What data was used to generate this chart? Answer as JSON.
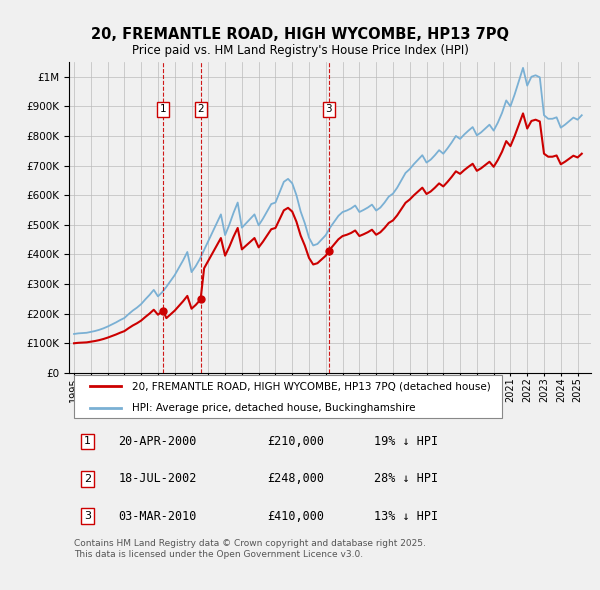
{
  "title": "20, FREMANTLE ROAD, HIGH WYCOMBE, HP13 7PQ",
  "subtitle": "Price paid vs. HM Land Registry's House Price Index (HPI)",
  "ytick_values": [
    0,
    100000,
    200000,
    300000,
    400000,
    500000,
    600000,
    700000,
    800000,
    900000,
    1000000
  ],
  "ylim": [
    0,
    1050000
  ],
  "xlim_start": 1994.7,
  "xlim_end": 2025.8,
  "background_color": "#f0f0f0",
  "plot_bg_color": "#f0f0f0",
  "grid_color": "#bbbbbb",
  "sale_color": "#cc0000",
  "hpi_color": "#7ab0d4",
  "sale_dates": [
    2000.31,
    2002.54,
    2010.17
  ],
  "sale_prices": [
    210000,
    248000,
    410000
  ],
  "sale_labels": [
    "1",
    "2",
    "3"
  ],
  "legend_sale_label": "20, FREMANTLE ROAD, HIGH WYCOMBE, HP13 7PQ (detached house)",
  "legend_hpi_label": "HPI: Average price, detached house, Buckinghamshire",
  "table_entries": [
    {
      "num": "1",
      "date": "20-APR-2000",
      "price": "£210,000",
      "pct": "19% ↓ HPI"
    },
    {
      "num": "2",
      "date": "18-JUL-2002",
      "price": "£248,000",
      "pct": "28% ↓ HPI"
    },
    {
      "num": "3",
      "date": "03-MAR-2010",
      "price": "£410,000",
      "pct": "13% ↓ HPI"
    }
  ],
  "footer": "Contains HM Land Registry data © Crown copyright and database right 2025.\nThis data is licensed under the Open Government Licence v3.0.",
  "hpi_x": [
    1995.0,
    1995.25,
    1995.5,
    1995.75,
    1996.0,
    1996.25,
    1996.5,
    1996.75,
    1997.0,
    1997.25,
    1997.5,
    1997.75,
    1998.0,
    1998.25,
    1998.5,
    1998.75,
    1999.0,
    1999.25,
    1999.5,
    1999.75,
    2000.0,
    2000.25,
    2000.5,
    2000.75,
    2001.0,
    2001.25,
    2001.5,
    2001.75,
    2002.0,
    2002.25,
    2002.5,
    2002.75,
    2003.0,
    2003.25,
    2003.5,
    2003.75,
    2004.0,
    2004.25,
    2004.5,
    2004.75,
    2005.0,
    2005.25,
    2005.5,
    2005.75,
    2006.0,
    2006.25,
    2006.5,
    2006.75,
    2007.0,
    2007.25,
    2007.5,
    2007.75,
    2008.0,
    2008.25,
    2008.5,
    2008.75,
    2009.0,
    2009.25,
    2009.5,
    2009.75,
    2010.0,
    2010.25,
    2010.5,
    2010.75,
    2011.0,
    2011.25,
    2011.5,
    2011.75,
    2012.0,
    2012.25,
    2012.5,
    2012.75,
    2013.0,
    2013.25,
    2013.5,
    2013.75,
    2014.0,
    2014.25,
    2014.5,
    2014.75,
    2015.0,
    2015.25,
    2015.5,
    2015.75,
    2016.0,
    2016.25,
    2016.5,
    2016.75,
    2017.0,
    2017.25,
    2017.5,
    2017.75,
    2018.0,
    2018.25,
    2018.5,
    2018.75,
    2019.0,
    2019.25,
    2019.5,
    2019.75,
    2020.0,
    2020.25,
    2020.5,
    2020.75,
    2021.0,
    2021.25,
    2021.5,
    2021.75,
    2022.0,
    2022.25,
    2022.5,
    2022.75,
    2023.0,
    2023.25,
    2023.5,
    2023.75,
    2024.0,
    2024.25,
    2024.5,
    2024.75,
    2025.0,
    2025.25
  ],
  "hpi_y": [
    131000,
    133000,
    134000,
    135000,
    138000,
    141000,
    145000,
    150000,
    156000,
    163000,
    170000,
    178000,
    185000,
    198000,
    210000,
    220000,
    232000,
    248000,
    263000,
    280000,
    258000,
    272000,
    290000,
    310000,
    330000,
    355000,
    380000,
    408000,
    340000,
    360000,
    385000,
    415000,
    445000,
    475000,
    505000,
    535000,
    465000,
    500000,
    540000,
    575000,
    490000,
    505000,
    520000,
    535000,
    498000,
    520000,
    545000,
    570000,
    575000,
    610000,
    645000,
    655000,
    640000,
    600000,
    545000,
    505000,
    456000,
    430000,
    435000,
    450000,
    465000,
    490000,
    510000,
    530000,
    543000,
    548000,
    555000,
    565000,
    543000,
    550000,
    558000,
    568000,
    548000,
    558000,
    575000,
    595000,
    605000,
    625000,
    650000,
    675000,
    688000,
    705000,
    720000,
    735000,
    710000,
    720000,
    735000,
    752000,
    740000,
    758000,
    778000,
    800000,
    790000,
    805000,
    818000,
    830000,
    802000,
    812000,
    825000,
    838000,
    818000,
    845000,
    878000,
    920000,
    900000,
    940000,
    985000,
    1030000,
    970000,
    1000000,
    1005000,
    998000,
    870000,
    858000,
    858000,
    863000,
    828000,
    838000,
    850000,
    862000,
    855000,
    870000
  ],
  "xtick_years": [
    1995,
    1996,
    1997,
    1998,
    1999,
    2000,
    2001,
    2002,
    2003,
    2004,
    2005,
    2006,
    2007,
    2008,
    2009,
    2010,
    2011,
    2012,
    2013,
    2014,
    2015,
    2016,
    2017,
    2018,
    2019,
    2020,
    2021,
    2022,
    2023,
    2024,
    2025
  ]
}
